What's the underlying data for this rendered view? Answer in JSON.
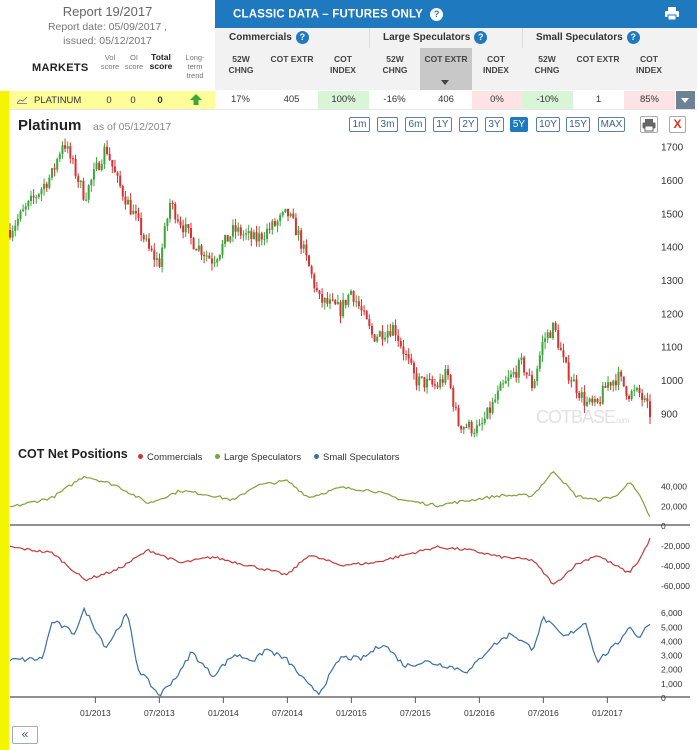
{
  "report": {
    "title": "Report 19/2017",
    "date": "Report date: 05/09/2017 ,",
    "issued": "issued: 05/12/2017"
  },
  "markets_table": {
    "markets_label": "MARKETS",
    "col_vol": "Vol score",
    "col_oi": "OI score",
    "col_total": "Total score",
    "col_trend": "Long-term trend",
    "header_title": "CLASSIC DATA – FUTURES ONLY",
    "groups": [
      "Commercials",
      "Large Speculators",
      "Small Speculators"
    ],
    "sub_headers": [
      "52W CHNG",
      "COT EXTR",
      "COT INDEX",
      "52W CHNG",
      "COT EXTR",
      "COT INDEX",
      "52W CHNG",
      "COT EXTR",
      "COT INDEX"
    ],
    "row": {
      "name": "PLATINUM",
      "vol": "0",
      "oi": "0",
      "total": "0",
      "trend": "up",
      "cells": [
        "17%",
        "405",
        "100%",
        "-16%",
        "406",
        "0%",
        "-10%",
        "1",
        "85%"
      ]
    }
  },
  "chart_header": {
    "title": "Platinum",
    "as_of": "as of 05/12/2017",
    "ranges": [
      "1m",
      "3m",
      "6m",
      "1Y",
      "2Y",
      "3Y",
      "5Y",
      "10Y",
      "15Y",
      "MAX"
    ],
    "active_range": "5Y",
    "close_label": "X"
  },
  "cot_net": {
    "title": "COT Net Positions",
    "legend": [
      {
        "name": "Commercials",
        "color": "#c23b3b"
      },
      {
        "name": "Large Speculators",
        "color": "#7fa33a"
      },
      {
        "name": "Small Speculators",
        "color": "#3a6ea8"
      }
    ]
  },
  "watermark": {
    "main": "COT",
    "secondary": "BASE",
    "suffix": ".com"
  },
  "colors": {
    "accent": "#1f79bf",
    "up": "#3aa63a",
    "down": "#d93030",
    "highlight": "#f5f500"
  },
  "chart_data": [
    {
      "type": "candlestick",
      "title": "Platinum",
      "x_ticks": [
        "01/2013",
        "07/2013",
        "01/2014",
        "07/2014",
        "01/2015",
        "07/2015",
        "01/2016",
        "07/2016",
        "01/2017"
      ],
      "ylim": [
        850,
        1750
      ],
      "y_ticks": [
        900,
        1000,
        1100,
        1200,
        1300,
        1400,
        1500,
        1600,
        1700
      ],
      "x_range": [
        "05/2012",
        "05/2017"
      ],
      "keypoints": [
        {
          "x": "05/2012",
          "y": 1450
        },
        {
          "x": "09/2012",
          "y": 1620
        },
        {
          "x": "10/2012",
          "y": 1720
        },
        {
          "x": "12/2012",
          "y": 1550
        },
        {
          "x": "02/2013",
          "y": 1700
        },
        {
          "x": "03/2013",
          "y": 1600
        },
        {
          "x": "05/2013",
          "y": 1470
        },
        {
          "x": "06/2013",
          "y": 1390
        },
        {
          "x": "07/2013",
          "y": 1350
        },
        {
          "x": "08/2013",
          "y": 1530
        },
        {
          "x": "10/2013",
          "y": 1420
        },
        {
          "x": "12/2013",
          "y": 1360
        },
        {
          "x": "02/2014",
          "y": 1450
        },
        {
          "x": "04/2014",
          "y": 1420
        },
        {
          "x": "06/2014",
          "y": 1470
        },
        {
          "x": "07/2014",
          "y": 1500
        },
        {
          "x": "08/2014",
          "y": 1440
        },
        {
          "x": "10/2014",
          "y": 1240
        },
        {
          "x": "12/2014",
          "y": 1210
        },
        {
          "x": "01/2015",
          "y": 1270
        },
        {
          "x": "03/2015",
          "y": 1130
        },
        {
          "x": "05/2015",
          "y": 1160
        },
        {
          "x": "07/2015",
          "y": 1000
        },
        {
          "x": "09/2015",
          "y": 980
        },
        {
          "x": "10/2015",
          "y": 1020
        },
        {
          "x": "11/2015",
          "y": 870
        },
        {
          "x": "01/2016",
          "y": 850
        },
        {
          "x": "03/2016",
          "y": 970
        },
        {
          "x": "05/2016",
          "y": 1050
        },
        {
          "x": "06/2016",
          "y": 980
        },
        {
          "x": "07/2016",
          "y": 1120
        },
        {
          "x": "08/2016",
          "y": 1160
        },
        {
          "x": "09/2016",
          "y": 1040
        },
        {
          "x": "11/2016",
          "y": 930
        },
        {
          "x": "12/2016",
          "y": 920
        },
        {
          "x": "01/2017",
          "y": 990
        },
        {
          "x": "02/2017",
          "y": 1010
        },
        {
          "x": "03/2017",
          "y": 960
        },
        {
          "x": "04/2017",
          "y": 960
        },
        {
          "x": "05/2017",
          "y": 900
        }
      ]
    },
    {
      "type": "line",
      "series": [
        {
          "name": "Large Speculators",
          "color": "#7fa33a"
        }
      ],
      "y_ticks": [
        0,
        20000,
        40000
      ],
      "ylim": [
        0,
        60000
      ],
      "keypoints": [
        {
          "x": "05/2012",
          "y": 18000
        },
        {
          "x": "09/2012",
          "y": 28000
        },
        {
          "x": "12/2012",
          "y": 50000
        },
        {
          "x": "03/2013",
          "y": 40000
        },
        {
          "x": "06/2013",
          "y": 22000
        },
        {
          "x": "09/2013",
          "y": 35000
        },
        {
          "x": "12/2013",
          "y": 30000
        },
        {
          "x": "02/2014",
          "y": 25000
        },
        {
          "x": "04/2014",
          "y": 40000
        },
        {
          "x": "07/2014",
          "y": 45000
        },
        {
          "x": "09/2014",
          "y": 28000
        },
        {
          "x": "12/2014",
          "y": 38000
        },
        {
          "x": "03/2015",
          "y": 35000
        },
        {
          "x": "06/2015",
          "y": 25000
        },
        {
          "x": "09/2015",
          "y": 20000
        },
        {
          "x": "12/2015",
          "y": 25000
        },
        {
          "x": "03/2016",
          "y": 30000
        },
        {
          "x": "06/2016",
          "y": 30000
        },
        {
          "x": "08/2016",
          "y": 55000
        },
        {
          "x": "10/2016",
          "y": 30000
        },
        {
          "x": "12/2016",
          "y": 25000
        },
        {
          "x": "02/2017",
          "y": 30000
        },
        {
          "x": "03/2017",
          "y": 45000
        },
        {
          "x": "04/2017",
          "y": 30000
        },
        {
          "x": "05/2017",
          "y": 8000
        }
      ]
    },
    {
      "type": "line",
      "series": [
        {
          "name": "Commercials",
          "color": "#c23b3b"
        }
      ],
      "y_ticks": [
        -60000,
        -40000,
        -20000
      ],
      "ylim": [
        -65000,
        -10000
      ],
      "keypoints": [
        {
          "x": "05/2012",
          "y": -22000
        },
        {
          "x": "09/2012",
          "y": -28000
        },
        {
          "x": "12/2012",
          "y": -55000
        },
        {
          "x": "03/2013",
          "y": -45000
        },
        {
          "x": "06/2013",
          "y": -25000
        },
        {
          "x": "09/2013",
          "y": -38000
        },
        {
          "x": "12/2013",
          "y": -32000
        },
        {
          "x": "04/2014",
          "y": -42000
        },
        {
          "x": "07/2014",
          "y": -50000
        },
        {
          "x": "09/2014",
          "y": -30000
        },
        {
          "x": "12/2014",
          "y": -40000
        },
        {
          "x": "03/2015",
          "y": -38000
        },
        {
          "x": "06/2015",
          "y": -30000
        },
        {
          "x": "09/2015",
          "y": -22000
        },
        {
          "x": "12/2015",
          "y": -25000
        },
        {
          "x": "03/2016",
          "y": -32000
        },
        {
          "x": "06/2016",
          "y": -35000
        },
        {
          "x": "08/2016",
          "y": -60000
        },
        {
          "x": "10/2016",
          "y": -40000
        },
        {
          "x": "12/2016",
          "y": -30000
        },
        {
          "x": "03/2017",
          "y": -48000
        },
        {
          "x": "04/2017",
          "y": -35000
        },
        {
          "x": "05/2017",
          "y": -14000
        }
      ]
    },
    {
      "type": "line",
      "series": [
        {
          "name": "Small Speculators",
          "color": "#3a6ea8"
        }
      ],
      "y_ticks": [
        0,
        1000,
        2000,
        3000,
        4000,
        5000,
        6000
      ],
      "ylim": [
        0,
        7000
      ],
      "keypoints": [
        {
          "x": "05/2012",
          "y": 2600
        },
        {
          "x": "08/2012",
          "y": 2700
        },
        {
          "x": "09/2012",
          "y": 5400
        },
        {
          "x": "11/2012",
          "y": 4500
        },
        {
          "x": "12/2012",
          "y": 6200
        },
        {
          "x": "02/2013",
          "y": 3500
        },
        {
          "x": "04/2013",
          "y": 5900
        },
        {
          "x": "05/2013",
          "y": 2000
        },
        {
          "x": "07/2013",
          "y": 100
        },
        {
          "x": "09/2013",
          "y": 1800
        },
        {
          "x": "10/2013",
          "y": 3200
        },
        {
          "x": "12/2013",
          "y": 1500
        },
        {
          "x": "02/2014",
          "y": 3000
        },
        {
          "x": "04/2014",
          "y": 2600
        },
        {
          "x": "05/2014",
          "y": 3400
        },
        {
          "x": "07/2014",
          "y": 2600
        },
        {
          "x": "09/2014",
          "y": 800
        },
        {
          "x": "10/2014",
          "y": 300
        },
        {
          "x": "12/2014",
          "y": 2800
        },
        {
          "x": "02/2015",
          "y": 2700
        },
        {
          "x": "04/2015",
          "y": 3800
        },
        {
          "x": "06/2015",
          "y": 2200
        },
        {
          "x": "08/2015",
          "y": 2500
        },
        {
          "x": "10/2015",
          "y": 2200
        },
        {
          "x": "12/2015",
          "y": 1800
        },
        {
          "x": "02/2016",
          "y": 3500
        },
        {
          "x": "04/2016",
          "y": 4500
        },
        {
          "x": "06/2016",
          "y": 3400
        },
        {
          "x": "07/2016",
          "y": 5600
        },
        {
          "x": "09/2016",
          "y": 4200
        },
        {
          "x": "11/2016",
          "y": 5300
        },
        {
          "x": "12/2016",
          "y": 2500
        },
        {
          "x": "02/2017",
          "y": 3800
        },
        {
          "x": "03/2017",
          "y": 5000
        },
        {
          "x": "04/2017",
          "y": 4200
        },
        {
          "x": "05/2017",
          "y": 5300
        }
      ]
    }
  ]
}
